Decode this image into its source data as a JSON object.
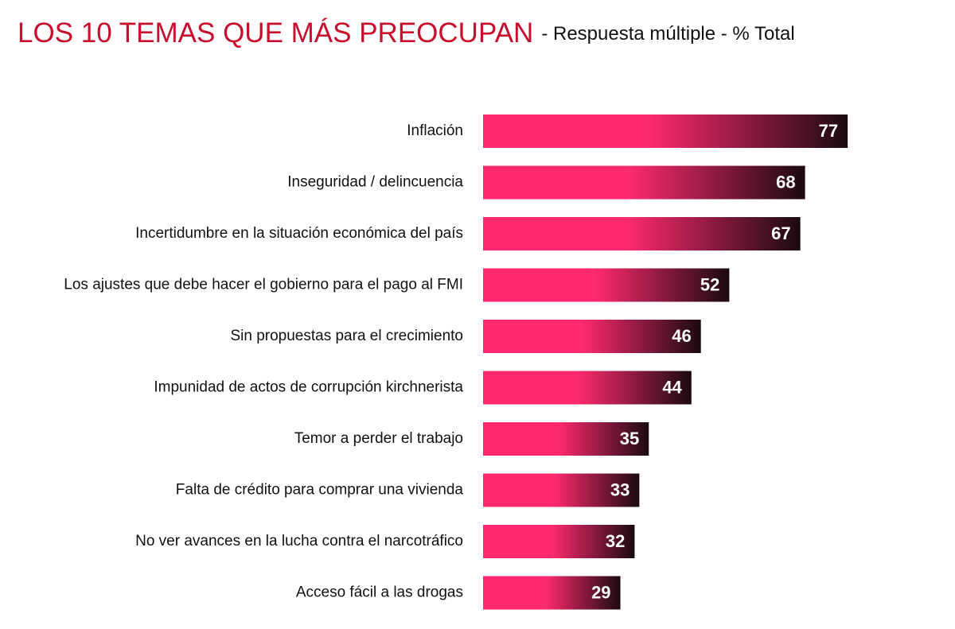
{
  "chart_data": {
    "type": "barh",
    "title": "LOS 10 TEMAS QUE MÁS PREOCUPAN",
    "subtitle": "- Respuesta múltiple - % Total",
    "categories": [
      "Inflación",
      "Inseguridad / delincuencia",
      "Incertidumbre en la situación económica del país",
      "Los ajustes que debe hacer el gobierno para el pago al FMI",
      "Sin propuestas para el crecimiento",
      "Impunidad de actos de corrupción kirchnerista",
      "Temor a perder el trabajo",
      "Falta de crédito para comprar una vivienda",
      "No ver avances en la lucha contra el narcotráfico",
      "Acceso fácil a las drogas"
    ],
    "values": [
      77,
      68,
      67,
      52,
      46,
      44,
      35,
      33,
      32,
      29
    ],
    "gradient": [
      "#ff2a6e",
      "#1a0a10"
    ]
  }
}
